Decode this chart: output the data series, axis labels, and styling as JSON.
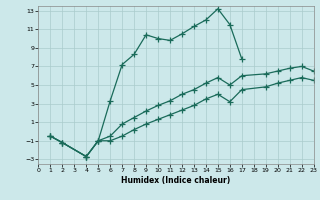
{
  "xlabel": "Humidex (Indice chaleur)",
  "bg_color": "#cce8ea",
  "grid_color": "#aacccc",
  "line_color": "#1a6b5a",
  "xlim": [
    0,
    23
  ],
  "ylim": [
    -3.5,
    13.5
  ],
  "xticks": [
    0,
    1,
    2,
    3,
    4,
    5,
    6,
    7,
    8,
    9,
    10,
    11,
    12,
    13,
    14,
    15,
    16,
    17,
    18,
    19,
    20,
    21,
    22,
    23
  ],
  "yticks": [
    -3,
    -1,
    1,
    3,
    5,
    7,
    9,
    11,
    13
  ],
  "line1_x": [
    1,
    2,
    4,
    5,
    6,
    7,
    8,
    9,
    10,
    11,
    12,
    13,
    14,
    15,
    16,
    17
  ],
  "line1_y": [
    -0.5,
    -1.2,
    -2.7,
    -1.0,
    3.3,
    7.2,
    8.3,
    10.4,
    10.0,
    9.8,
    10.5,
    11.3,
    12.0,
    13.2,
    11.5,
    7.8
  ],
  "line2_x": [
    1,
    2,
    4,
    5,
    6,
    7,
    8,
    9,
    10,
    11,
    12,
    13,
    14,
    15,
    16,
    17,
    19,
    20,
    21,
    22,
    23
  ],
  "line2_y": [
    -0.5,
    -1.2,
    -2.7,
    -1.0,
    -0.5,
    0.8,
    1.5,
    2.2,
    2.8,
    3.3,
    4.0,
    4.5,
    5.2,
    5.8,
    5.0,
    6.0,
    6.2,
    6.5,
    6.8,
    7.0,
    6.5
  ],
  "line3_x": [
    1,
    2,
    4,
    5,
    6,
    7,
    8,
    9,
    10,
    11,
    12,
    13,
    14,
    15,
    16,
    17,
    19,
    20,
    21,
    22,
    23
  ],
  "line3_y": [
    -0.5,
    -1.2,
    -2.7,
    -1.0,
    -1.0,
    -0.5,
    0.2,
    0.8,
    1.3,
    1.8,
    2.3,
    2.8,
    3.5,
    4.0,
    3.2,
    4.5,
    4.8,
    5.2,
    5.5,
    5.8,
    5.5
  ]
}
